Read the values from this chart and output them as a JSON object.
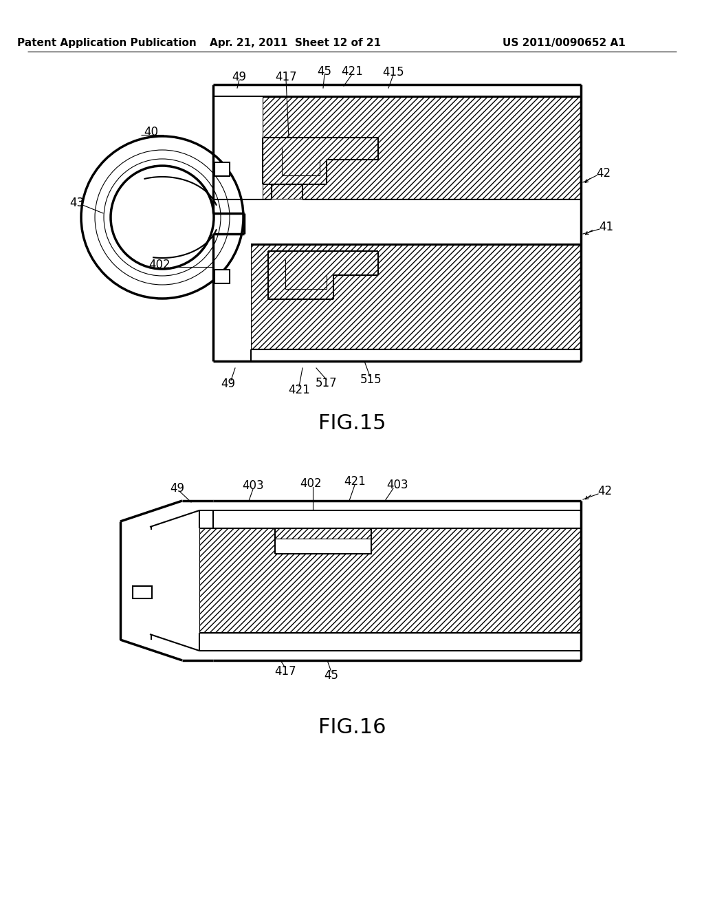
{
  "bg_color": "#ffffff",
  "line_color": "#000000",
  "header_left": "Patent Application Publication",
  "header_mid": "Apr. 21, 2011  Sheet 12 of 21",
  "header_right": "US 2011/0090652 A1",
  "fig15_label": "FIG.15",
  "fig16_label": "FIG.16",
  "header_fontsize": 11,
  "label_fontsize": 22,
  "ref_fontsize": 12
}
